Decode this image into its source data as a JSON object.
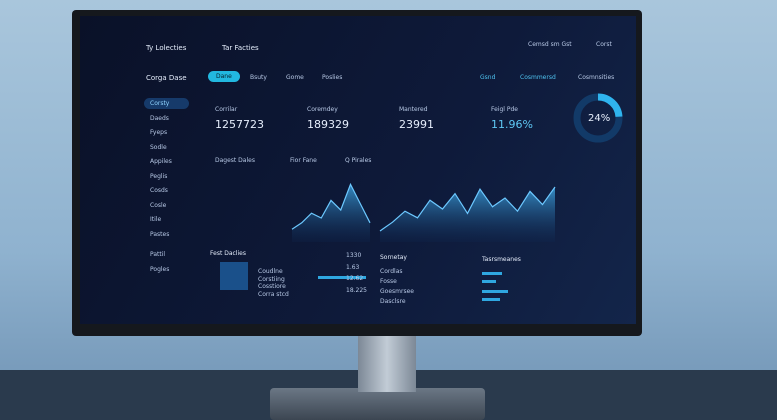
{
  "top_bar": {
    "title": "Ty Lolecties",
    "tab": "Tar Facties",
    "search": "Cemsd sm Gst",
    "action": "Corst"
  },
  "toolbar": {
    "brand": "Corga Dase",
    "buttons": [
      "Dane",
      "Bsuty",
      "Gome",
      "Poslies"
    ],
    "filters": [
      "Gsnd",
      "Cosmmersd",
      "Cosmnsities"
    ]
  },
  "sidebar": {
    "items": [
      "Corsty",
      "Daeds",
      "Fyeps",
      "Sodle",
      "Appiles",
      "Peglis",
      "Cosds",
      "Cosle",
      "Itile",
      "Pastes",
      "Pattil",
      "Pogles"
    ]
  },
  "kpis": [
    {
      "label": "Corrilar",
      "value": "1257723"
    },
    {
      "label": "Coremdey",
      "value": "189329"
    },
    {
      "label": "Mantered",
      "value": "23991"
    },
    {
      "label": "Feigl Pde",
      "value": "11.96%"
    }
  ],
  "donut": {
    "value": 24,
    "label": "24%"
  },
  "charts": {
    "headers": [
      "Dagest Dales",
      "Fior Fane",
      "Q Pirales"
    ],
    "left_area": [
      8,
      12,
      18,
      15,
      26,
      20,
      36,
      24,
      12
    ],
    "right_area": [
      10,
      18,
      28,
      22,
      38,
      30,
      44,
      26,
      48,
      32,
      40,
      28,
      46,
      34,
      50
    ]
  },
  "bottom": {
    "left_title": "Fest Daclies",
    "left_rows": [
      "Coudlne",
      "Corstiing",
      "Cosstiore",
      "Corra stcd"
    ],
    "left_numbers": [
      "1330",
      "1.63",
      "12.62",
      "18.225"
    ],
    "middle_title": "Sornetay",
    "middle_rows": [
      "Cordlas",
      "Fosse",
      "Goesmrsee",
      "Dasclsre"
    ],
    "right_title": "Tasrsmeanes"
  }
}
